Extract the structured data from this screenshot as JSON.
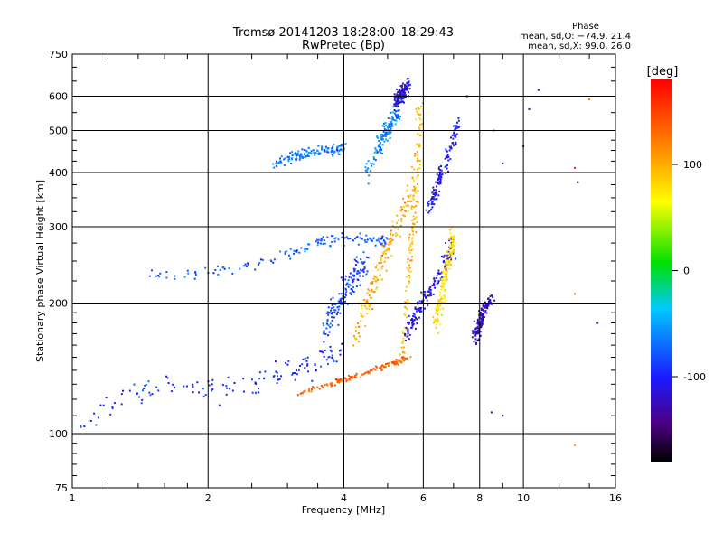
{
  "chart_data": {
    "type": "scatter",
    "title": "Tromsø 20141203 18:28:00–18:29:43",
    "subtitle": "RwPretec (Bp)",
    "xlabel": "Frequency [MHz]",
    "ylabel": "Stationary phase Virtual Height [km]",
    "x_scale": "log",
    "y_scale": "log",
    "xlim": [
      1,
      16
    ],
    "ylim": [
      75,
      750
    ],
    "x_ticks": [
      "1",
      "2",
      "4",
      "6",
      "8",
      "10",
      "16"
    ],
    "y_ticks": [
      "75",
      "100",
      "200",
      "300",
      "400",
      "500",
      "600",
      "750"
    ],
    "grid": true,
    "colorbar": {
      "label": "[deg]",
      "range": [
        -180,
        180
      ],
      "ticks": [
        "100",
        "0",
        "-100"
      ],
      "tick_values": [
        100,
        0,
        -100
      ],
      "colormap": "rainbow (black → purple → blue → cyan → green → yellow → orange → red)"
    },
    "stats": {
      "heading": "Phase",
      "line_o": "mean, sd,O: −74.9, 21.4",
      "line_x": "mean, sd,X:  99.0, 26.0"
    },
    "traces": [
      {
        "name": "",
        "x": [
          1.05,
          1.3,
          1.6,
          2.0,
          2.5,
          3.0,
          3.5,
          4.0
        ],
        "y": [
          108,
          120,
          130,
          125,
          130,
          140,
          145,
          155
        ],
        "phase": -95,
        "spread": 0.07
      },
      {
        "name": "",
        "x": [
          1.5,
          2.0,
          2.5,
          3.0,
          3.5,
          4.0,
          4.5,
          5.0
        ],
        "y": [
          232,
          236,
          243,
          258,
          275,
          283,
          280,
          280
        ],
        "phase": -78,
        "spread": 0.035
      },
      {
        "name": "",
        "x": [
          2.8,
          3.2,
          3.6,
          4.0
        ],
        "y": [
          420,
          440,
          450,
          455
        ],
        "phase": -65,
        "spread": 0.03
      },
      {
        "name": "",
        "x": [
          3.6,
          3.8,
          4.0,
          4.2,
          4.5
        ],
        "y": [
          170,
          190,
          210,
          230,
          250
        ],
        "phase": -85,
        "spread": 0.08
      },
      {
        "name": "",
        "x": [
          3.2,
          3.8,
          4.3,
          4.8,
          5.2,
          5.6
        ],
        "y": [
          124,
          131,
          136,
          142,
          146,
          150
        ],
        "phase": 135,
        "spread": 0.015
      },
      {
        "name": "",
        "x": [
          4.2,
          4.5,
          4.8,
          5.1,
          5.4,
          5.7
        ],
        "y": [
          165,
          200,
          240,
          280,
          320,
          360
        ],
        "phase": 100,
        "spread": 0.08
      },
      {
        "name": "",
        "x": [
          5.4,
          5.6,
          5.8,
          5.9
        ],
        "y": [
          150,
          250,
          400,
          560
        ],
        "phase": 95,
        "spread": 0.05
      },
      {
        "name": "",
        "x": [
          5.5,
          5.8,
          6.2,
          6.6,
          7.0
        ],
        "y": [
          170,
          190,
          215,
          240,
          270
        ],
        "phase": -110,
        "spread": 0.07
      },
      {
        "name": "",
        "x": [
          6.2,
          6.5,
          6.8,
          7.2
        ],
        "y": [
          330,
          380,
          440,
          520
        ],
        "phase": -105,
        "spread": 0.05
      },
      {
        "name": "",
        "x": [
          4.5,
          4.8,
          5.0,
          5.3
        ],
        "y": [
          400,
          460,
          500,
          560
        ],
        "phase": -60,
        "spread": 0.05
      },
      {
        "name": "",
        "x": [
          7.8,
          8.0,
          8.2,
          8.5
        ],
        "y": [
          165,
          180,
          195,
          205
        ],
        "phase": -120,
        "spread": 0.05
      },
      {
        "name": "",
        "x": [
          5.2,
          5.4,
          5.6
        ],
        "y": [
          580,
          610,
          640
        ],
        "phase": -115,
        "spread": 0.04
      },
      {
        "name": "",
        "x": [
          6.4,
          6.7,
          7.0
        ],
        "y": [
          180,
          230,
          290
        ],
        "phase": 80,
        "spread": 0.06
      }
    ],
    "isolated_points": [
      {
        "x": 9.0,
        "y": 420,
        "phase": -130
      },
      {
        "x": 10.0,
        "y": 460,
        "phase": -150
      },
      {
        "x": 13.0,
        "y": 410,
        "phase": 170
      },
      {
        "x": 13.2,
        "y": 380,
        "phase": -130
      },
      {
        "x": 14.0,
        "y": 590,
        "phase": 130
      },
      {
        "x": 13.0,
        "y": 94,
        "phase": 110
      },
      {
        "x": 13.0,
        "y": 210,
        "phase": 120
      },
      {
        "x": 14.6,
        "y": 180,
        "phase": -120
      },
      {
        "x": 8.6,
        "y": 500,
        "phase": 160
      },
      {
        "x": 8.5,
        "y": 112,
        "phase": -140
      },
      {
        "x": 9.0,
        "y": 110,
        "phase": -150
      },
      {
        "x": 7.5,
        "y": 600,
        "phase": -115
      },
      {
        "x": 10.3,
        "y": 560,
        "phase": -120
      },
      {
        "x": 10.8,
        "y": 620,
        "phase": -130
      }
    ]
  }
}
